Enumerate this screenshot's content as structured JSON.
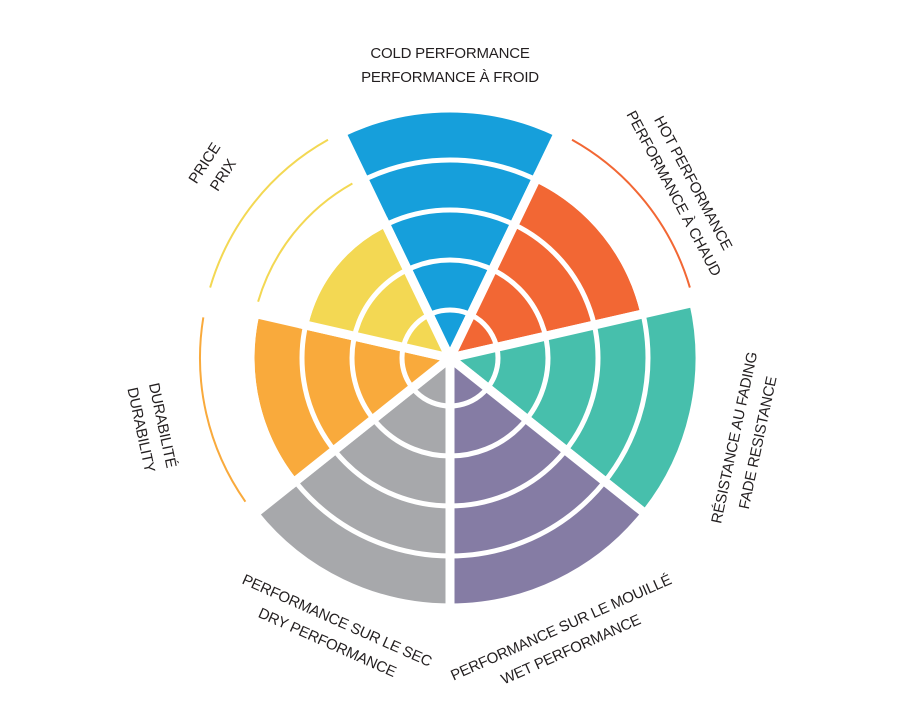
{
  "chart_data": {
    "type": "polar-bar",
    "scale_max": 5,
    "categories": [
      {
        "label_en": "COLD PERFORMANCE",
        "label_fr": "PERFORMANCE À FROID",
        "value": 5,
        "color": "#169fdb"
      },
      {
        "label_en": "HOT PERFORMANCE",
        "label_fr": "PERFORMANCE À CHAUD",
        "value": 4,
        "color": "#f26734"
      },
      {
        "label_en": "FADE RESISTANCE",
        "label_fr": "RÉSISTANCE AU FADING",
        "value": 5,
        "color": "#47bfac"
      },
      {
        "label_en": "WET PERFORMANCE",
        "label_fr": "PERFORMANCE SUR LE MOUILLÉ",
        "value": 5,
        "color": "#857ca4"
      },
      {
        "label_en": "DRY PERFORMANCE",
        "label_fr": "PERFORMANCE SUR LE SEC",
        "value": 5,
        "color": "#a7a8ab"
      },
      {
        "label_en": "DURABILITY",
        "label_fr": "DURABILITÉ",
        "value": 4,
        "color": "#f9aa3c"
      },
      {
        "label_en": "PRICE",
        "label_fr": "PRIX",
        "value": 3,
        "color": "#f3d853"
      }
    ]
  }
}
